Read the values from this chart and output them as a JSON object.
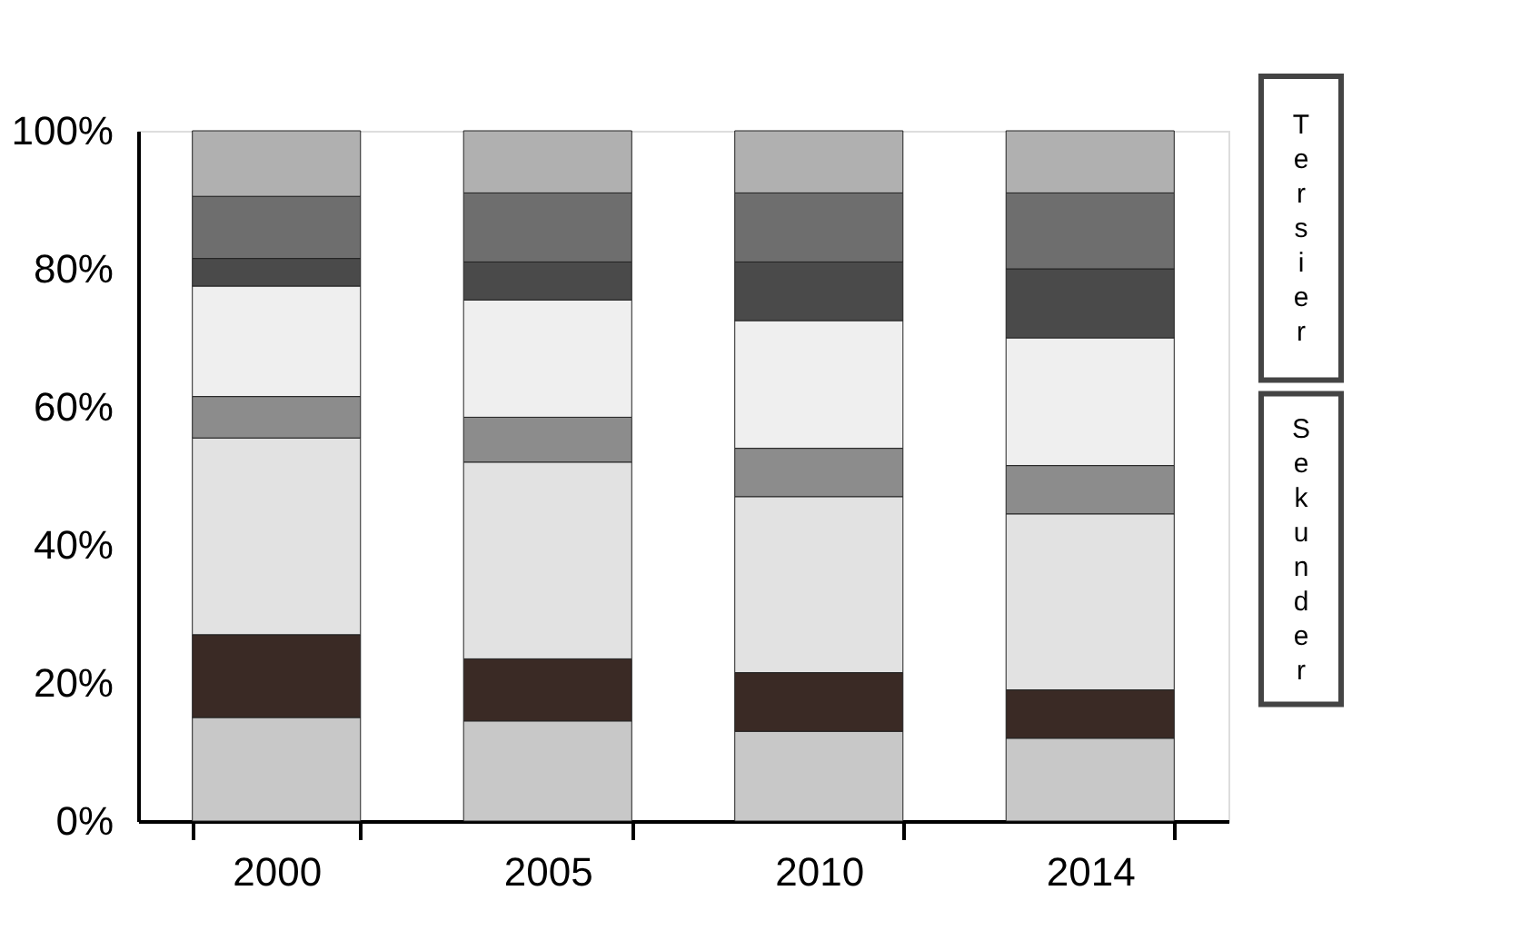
{
  "chart_data": {
    "type": "bar",
    "stacked": true,
    "categories": [
      "2000",
      "2005",
      "2010",
      "2014"
    ],
    "series": [
      {
        "color": "#c8c8c8",
        "values": [
          15,
          14.5,
          13,
          12
        ]
      },
      {
        "color": "#3a2a25",
        "values": [
          12,
          9,
          8.5,
          7
        ]
      },
      {
        "color": "#e2e2e2",
        "values": [
          28.5,
          28.5,
          25.5,
          25.5
        ]
      },
      {
        "color": "#8c8c8c",
        "values": [
          6,
          6.5,
          7,
          7
        ]
      },
      {
        "color": "#efefef",
        "values": [
          16,
          17,
          18.5,
          18.5
        ]
      },
      {
        "color": "#4a4a4a",
        "values": [
          4,
          5.5,
          8.5,
          10
        ]
      },
      {
        "color": "#6e6e6e",
        "values": [
          9,
          10,
          10,
          11
        ]
      },
      {
        "color": "#b0b0b0",
        "values": [
          9.5,
          9,
          9,
          9
        ]
      }
    ],
    "ylim": [
      0,
      100
    ],
    "yticks": [
      {
        "value": 0,
        "label": "0%"
      },
      {
        "value": 20,
        "label": "20%"
      },
      {
        "value": 40,
        "label": "40%"
      },
      {
        "value": 60,
        "label": "60%"
      },
      {
        "value": 80,
        "label": "80%"
      },
      {
        "value": 100,
        "label": "100%"
      }
    ],
    "grid": false,
    "legend": false,
    "annotations": [
      "Tersier",
      "Sekunder"
    ]
  }
}
